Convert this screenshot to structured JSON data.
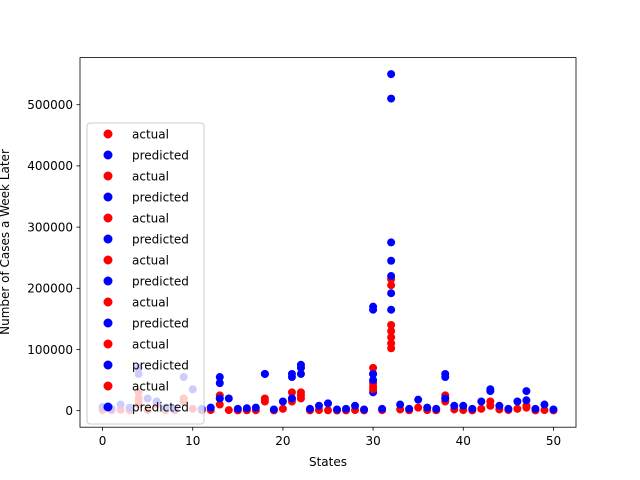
{
  "chart_data": {
    "type": "scatter",
    "title": "",
    "xlabel": "States",
    "ylabel": "Number of Cases a Week Later",
    "xlim": [
      -2.5,
      52.5
    ],
    "ylim": [
      -27000,
      577000
    ],
    "xticks": [
      0,
      10,
      20,
      30,
      40,
      50
    ],
    "yticks": [
      0,
      100000,
      200000,
      300000,
      400000,
      500000
    ],
    "ytick_labels": [
      "0",
      "100000",
      "200000",
      "300000",
      "400000",
      "500000"
    ],
    "grid": false,
    "legend": {
      "placement": "lower-left",
      "alpha": 0.8
    },
    "colors": {
      "actual": "#ff0000",
      "predicted": "#0000ff"
    },
    "series": [
      {
        "name": "actual",
        "color": "#ff0000",
        "x": [
          0,
          1,
          2,
          3,
          4,
          5,
          6,
          7,
          8,
          9,
          10,
          11,
          12,
          13,
          14,
          15,
          16,
          17,
          18,
          19,
          20,
          21,
          22,
          23,
          24,
          25,
          26,
          27,
          28,
          29,
          30,
          31,
          32,
          33,
          34,
          35,
          36,
          37,
          38,
          39,
          40,
          41,
          42,
          43,
          44,
          45,
          46,
          47,
          48,
          49,
          50
        ],
        "y": [
          1000,
          500,
          1500,
          800,
          20000,
          1200,
          10000,
          800,
          500,
          15000,
          3000,
          500,
          1000,
          20000,
          1000,
          500,
          600,
          800,
          15000,
          500,
          3000,
          20000,
          20000,
          500,
          1000,
          700,
          300,
          400,
          1000,
          500,
          45000,
          800,
          140000,
          2000,
          600,
          5000,
          900,
          700,
          20000,
          2000,
          1000,
          500,
          3000,
          8000,
          2000,
          1000,
          3000,
          8000,
          500,
          1000,
          400
        ]
      },
      {
        "name": "predicted",
        "color": "#0000ff",
        "x": [
          0,
          1,
          2,
          3,
          4,
          5,
          6,
          7,
          8,
          9,
          10,
          11,
          12,
          13,
          14,
          15,
          16,
          17,
          18,
          19,
          20,
          21,
          22,
          23,
          24,
          25,
          26,
          27,
          28,
          29,
          30,
          31,
          32,
          33,
          34,
          35,
          36,
          37,
          38,
          39,
          40,
          41,
          42,
          43,
          44,
          45,
          46,
          47,
          48,
          49,
          50
        ],
        "y": [
          6000,
          3000,
          10000,
          5000,
          70000,
          20000,
          15000,
          5000,
          3000,
          55000,
          35000,
          3000,
          5000,
          45000,
          20000,
          3000,
          4000,
          5000,
          60000,
          2000,
          15000,
          60000,
          70000,
          3000,
          8000,
          12000,
          2000,
          3000,
          8000,
          2000,
          170000,
          3000,
          550000,
          10000,
          3000,
          18000,
          5000,
          3000,
          60000,
          8000,
          8000,
          3000,
          15000,
          35000,
          8000,
          3000,
          15000,
          32000,
          3000,
          10000,
          2000
        ]
      },
      {
        "name": "actual",
        "color": "#ff0000",
        "x": [
          4,
          9,
          13,
          18,
          21,
          22,
          30,
          32,
          38,
          43,
          47
        ],
        "y": [
          30000,
          20000,
          10000,
          20000,
          30000,
          25000,
          60000,
          130000,
          25000,
          15000,
          5000
        ]
      },
      {
        "name": "predicted",
        "color": "#0000ff",
        "x": [
          4,
          13,
          18,
          21,
          22,
          30,
          32,
          38,
          43,
          47
        ],
        "y": [
          60000,
          55000,
          60000,
          55000,
          75000,
          165000,
          510000,
          55000,
          32000,
          17000
        ]
      },
      {
        "name": "actual",
        "color": "#ff0000",
        "x": [
          4,
          13,
          21,
          22,
          30,
          32,
          38
        ],
        "y": [
          10000,
          25000,
          15000,
          30000,
          70000,
          120000,
          15000
        ]
      },
      {
        "name": "predicted",
        "color": "#0000ff",
        "x": [
          13,
          21,
          22,
          30,
          32,
          38
        ],
        "y": [
          20000,
          20000,
          60000,
          60000,
          275000,
          20000
        ]
      },
      {
        "name": "actual",
        "color": "#ff0000",
        "x": [
          4,
          30,
          32
        ],
        "y": [
          15000,
          40000,
          215000
        ]
      },
      {
        "name": "predicted",
        "color": "#0000ff",
        "x": [
          30,
          32
        ],
        "y": [
          30000,
          245000
        ]
      },
      {
        "name": "actual",
        "color": "#ff0000",
        "x": [
          30,
          32
        ],
        "y": [
          35000,
          205000
        ]
      },
      {
        "name": "predicted",
        "color": "#0000ff",
        "x": [
          30,
          32
        ],
        "y": [
          50000,
          220000
        ]
      },
      {
        "name": "actual",
        "color": "#ff0000",
        "x": [
          32
        ],
        "y": [
          110000
        ]
      },
      {
        "name": "predicted",
        "color": "#0000ff",
        "x": [
          32
        ],
        "y": [
          192000
        ]
      },
      {
        "name": "actual",
        "color": "#ff0000",
        "x": [
          32
        ],
        "y": [
          102000
        ]
      },
      {
        "name": "predicted",
        "color": "#0000ff",
        "x": [
          32
        ],
        "y": [
          165000
        ]
      }
    ]
  }
}
